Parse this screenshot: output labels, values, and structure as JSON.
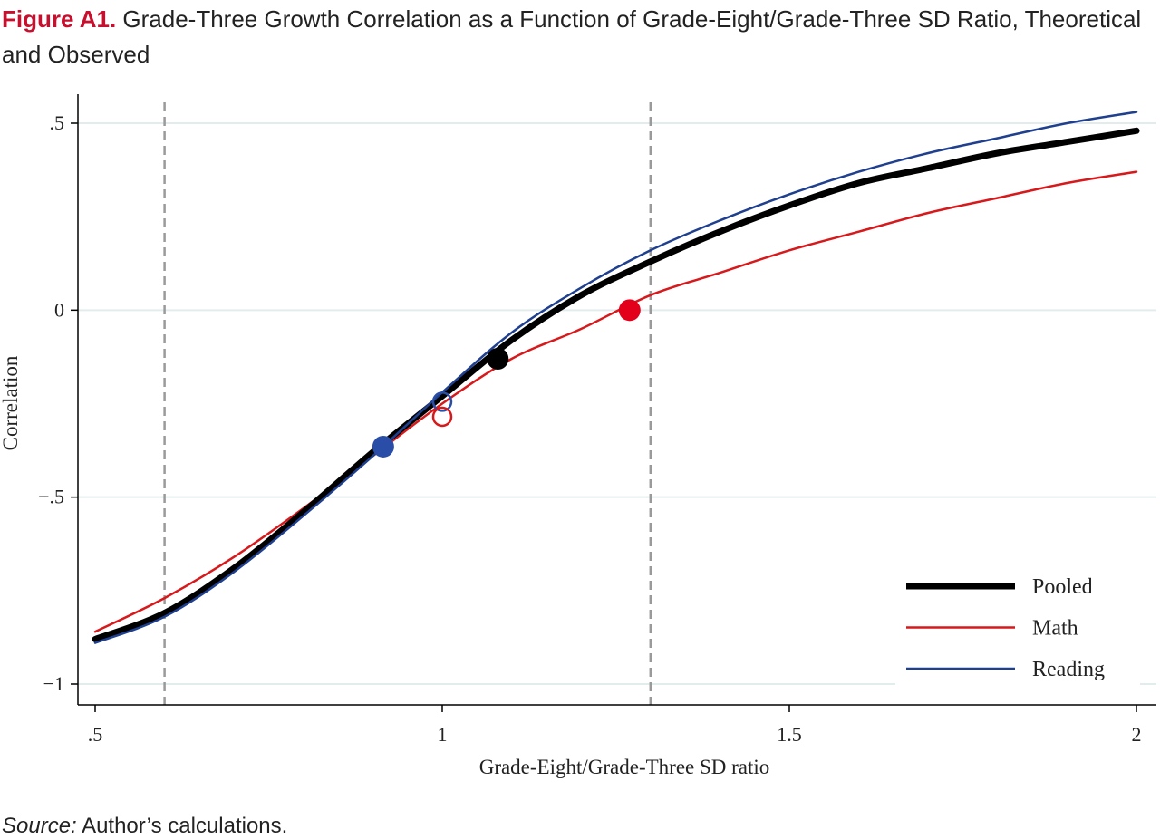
{
  "figure": {
    "label": "Figure A1.",
    "title": "Grade-Three Growth Correlation as a Function of Grade-Eight/Grade-Three SD Ratio, Theoretical and Observed"
  },
  "source": {
    "label": "Source:",
    "text": "Author’s calculations."
  },
  "chart_data": {
    "type": "line",
    "xlabel": "Grade-Eight/Grade-Three SD ratio",
    "ylabel": "Correlation",
    "xlim": [
      0.5,
      2
    ],
    "ylim": [
      -1,
      0.5
    ],
    "x_ticks": [
      {
        "value": 0.5,
        "label": ".5"
      },
      {
        "value": 1,
        "label": "1"
      },
      {
        "value": 1.5,
        "label": "1.5"
      },
      {
        "value": 2,
        "label": "2"
      }
    ],
    "y_ticks": [
      {
        "value": 0.5,
        "label": ".5"
      },
      {
        "value": 0,
        "label": "0"
      },
      {
        "value": -0.5,
        "label": "−.5"
      },
      {
        "value": -1,
        "label": "−1"
      }
    ],
    "grid": "horizontal",
    "reference_lines_x": [
      0.6,
      1.3
    ],
    "legend_position": "bottom-right",
    "series": [
      {
        "name": "Pooled",
        "color": "#000000",
        "x": [
          0.5,
          0.6,
          0.7,
          0.8,
          0.9,
          1.0,
          1.1,
          1.2,
          1.3,
          1.4,
          1.5,
          1.6,
          1.7,
          1.8,
          1.9,
          2.0
        ],
        "y": [
          -0.88,
          -0.81,
          -0.69,
          -0.54,
          -0.38,
          -0.23,
          -0.08,
          0.04,
          0.13,
          0.21,
          0.28,
          0.34,
          0.38,
          0.42,
          0.45,
          0.48
        ]
      },
      {
        "name": "Math",
        "color": "#d7191c",
        "x": [
          0.5,
          0.6,
          0.7,
          0.8,
          0.9,
          1.0,
          1.1,
          1.2,
          1.3,
          1.4,
          1.5,
          1.6,
          1.7,
          1.8,
          1.9,
          2.0
        ],
        "y": [
          -0.86,
          -0.77,
          -0.66,
          -0.53,
          -0.39,
          -0.25,
          -0.13,
          -0.05,
          0.04,
          0.1,
          0.16,
          0.21,
          0.26,
          0.3,
          0.34,
          0.37
        ]
      },
      {
        "name": "Reading",
        "color": "#1f3f8f",
        "x": [
          0.5,
          0.6,
          0.7,
          0.8,
          0.9,
          1.0,
          1.1,
          1.2,
          1.3,
          1.4,
          1.5,
          1.6,
          1.7,
          1.8,
          1.9,
          2.0
        ],
        "y": [
          -0.89,
          -0.82,
          -0.7,
          -0.55,
          -0.39,
          -0.22,
          -0.06,
          0.06,
          0.16,
          0.24,
          0.31,
          0.37,
          0.42,
          0.46,
          0.5,
          0.53
        ]
      }
    ],
    "points": [
      {
        "series": "Reading",
        "x": 0.915,
        "y": -0.365,
        "filled": true,
        "color": "#2a4ea8"
      },
      {
        "series": "Pooled",
        "x": 1.08,
        "y": -0.13,
        "filled": true,
        "color": "#000000"
      },
      {
        "series": "Math",
        "x": 1.27,
        "y": 0.0,
        "filled": true,
        "color": "#e3001b"
      },
      {
        "series": "Reading",
        "x": 1.0,
        "y": -0.245,
        "filled": false,
        "color": "#2a4ea8"
      },
      {
        "series": "Math",
        "x": 1.0,
        "y": -0.285,
        "filled": false,
        "color": "#d7191c"
      }
    ]
  }
}
